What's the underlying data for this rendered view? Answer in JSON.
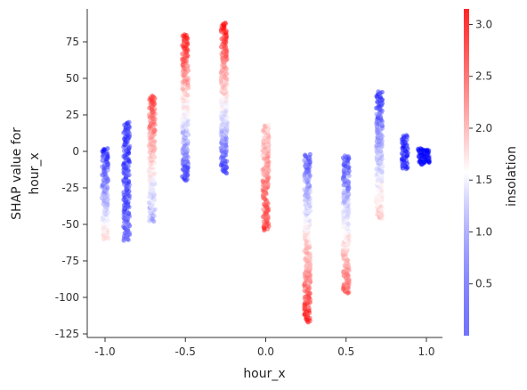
{
  "chart_data": {
    "type": "scatter",
    "xlabel": "hour_x",
    "ylabel": "SHAP value for\nhour_x",
    "xlim": [
      -1.1,
      1.1
    ],
    "ylim": [
      -127,
      97
    ],
    "x_ticks": [
      -1.0,
      -0.5,
      0.0,
      0.5,
      1.0
    ],
    "x_tick_labels": [
      "-1.0",
      "-0.5",
      "0.0",
      "0.5",
      "1.0"
    ],
    "y_ticks": [
      75,
      50,
      25,
      0,
      -25,
      -50,
      -75,
      -100,
      -125
    ],
    "y_tick_labels": [
      "75",
      "50",
      "25",
      "0",
      "-25",
      "-50",
      "-75",
      "-100",
      "-125"
    ],
    "grid": false,
    "colorbar": {
      "label": "insolation",
      "range": [
        0.0,
        3.15
      ],
      "ticks": [
        0.5,
        1.0,
        1.5,
        2.0,
        2.5,
        3.0
      ],
      "tick_labels": [
        "0.5",
        "1.0",
        "1.5",
        "2.0",
        "2.5",
        "3.0"
      ],
      "colors": [
        "#0000ff",
        "#ffffff",
        "#ff0000"
      ]
    },
    "clusters": [
      {
        "x": -1.0,
        "y_range": [
          -60,
          2
        ],
        "color_low_y": 1.8,
        "color_high_y": 0.2
      },
      {
        "x": -0.866,
        "y_range": [
          -61,
          20
        ],
        "color_low_y": 0.6,
        "color_high_y": 0.3
      },
      {
        "x": -0.707,
        "y_range": [
          -48,
          38
        ],
        "color_low_y": 1.0,
        "color_high_y": 2.8
      },
      {
        "x": -0.5,
        "y_range": [
          -20,
          80
        ],
        "color_low_y": 0.3,
        "color_high_y": 3.0
      },
      {
        "x": -0.259,
        "y_range": [
          -15,
          88
        ],
        "color_low_y": 0.3,
        "color_high_y": 3.1
      },
      {
        "x": 0.0,
        "y_range": [
          -54,
          18
        ],
        "color_low_y": 2.8,
        "color_high_y": 1.9
      },
      {
        "x": 0.259,
        "y_range": [
          -117,
          -2
        ],
        "color_low_y": 3.0,
        "color_high_y": 0.5
      },
      {
        "x": 0.5,
        "y_range": [
          -97,
          -3
        ],
        "color_low_y": 2.6,
        "color_high_y": 0.4
      },
      {
        "x": 0.707,
        "y_range": [
          -46,
          41
        ],
        "color_low_y": 2.0,
        "color_high_y": 0.3
      },
      {
        "x": 0.866,
        "y_range": [
          -12,
          11
        ],
        "color_low_y": 0.2,
        "color_high_y": 0.2
      },
      {
        "x": 0.966,
        "y_range": [
          -9,
          2
        ],
        "color_low_y": 0.05,
        "color_high_y": 0.05
      },
      {
        "x": 1.0,
        "y_range": [
          -8,
          1
        ],
        "color_low_y": 0.05,
        "color_high_y": 0.05
      }
    ]
  }
}
